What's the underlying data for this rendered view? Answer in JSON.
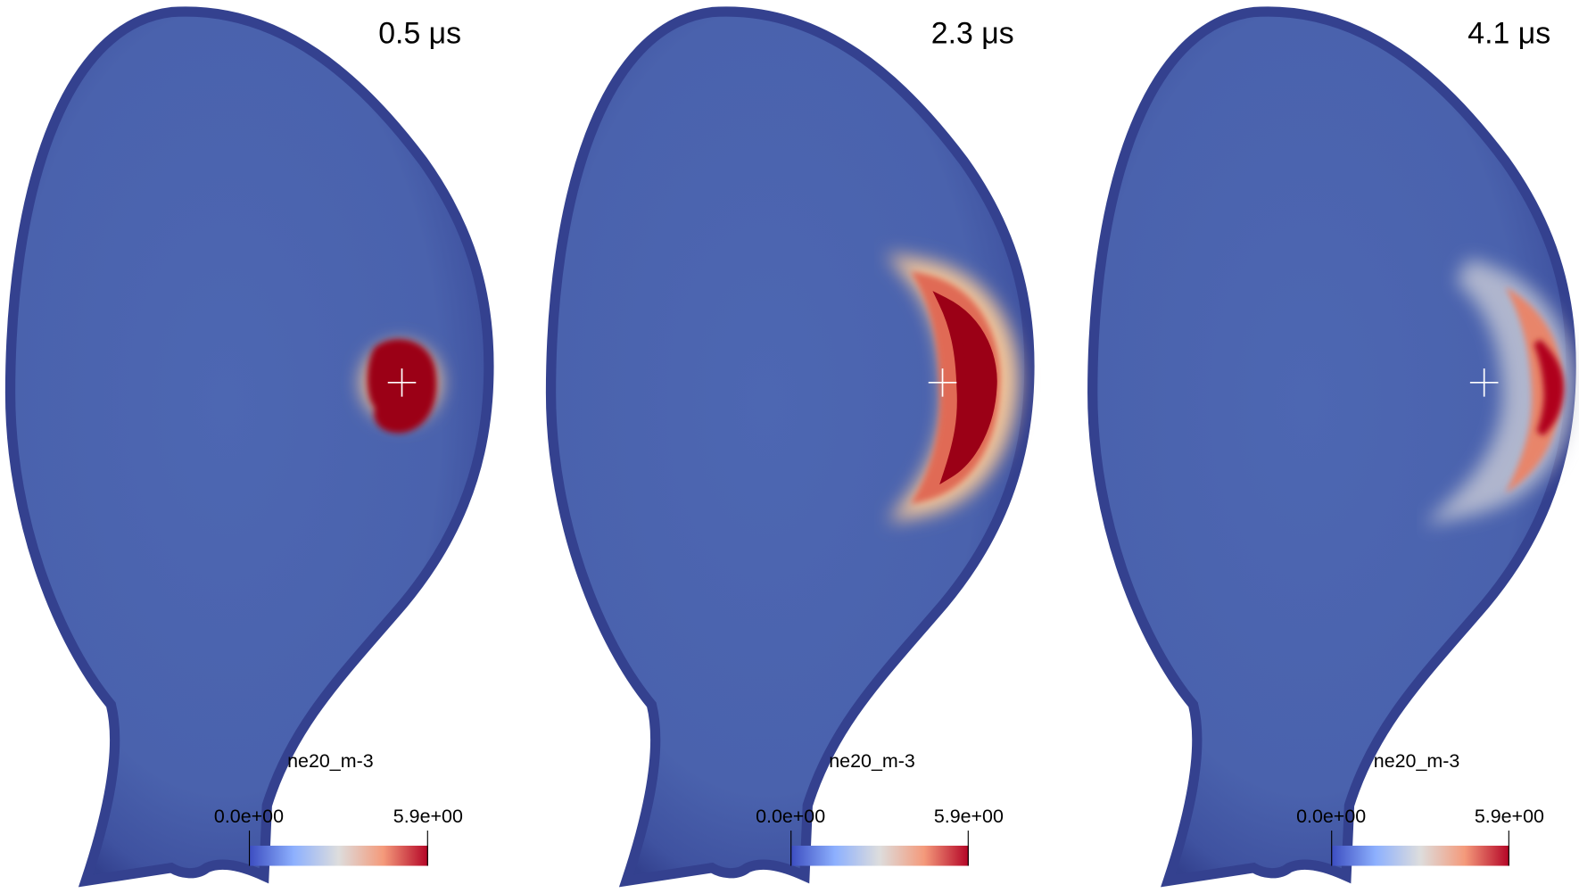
{
  "panels": [
    {
      "time": "0.5 μs",
      "colorbar": {
        "title": "ne20_m-3",
        "min_label": "0.0e+00",
        "max_label": "5.9e+00"
      }
    },
    {
      "time": "2.3 μs",
      "colorbar": {
        "title": "ne20_m-3",
        "min_label": "0.0e+00",
        "max_label": "5.9e+00"
      }
    },
    {
      "time": "4.1 μs",
      "colorbar": {
        "title": "ne20_m-3",
        "min_label": "0.0e+00",
        "max_label": "5.9e+00"
      }
    }
  ]
}
